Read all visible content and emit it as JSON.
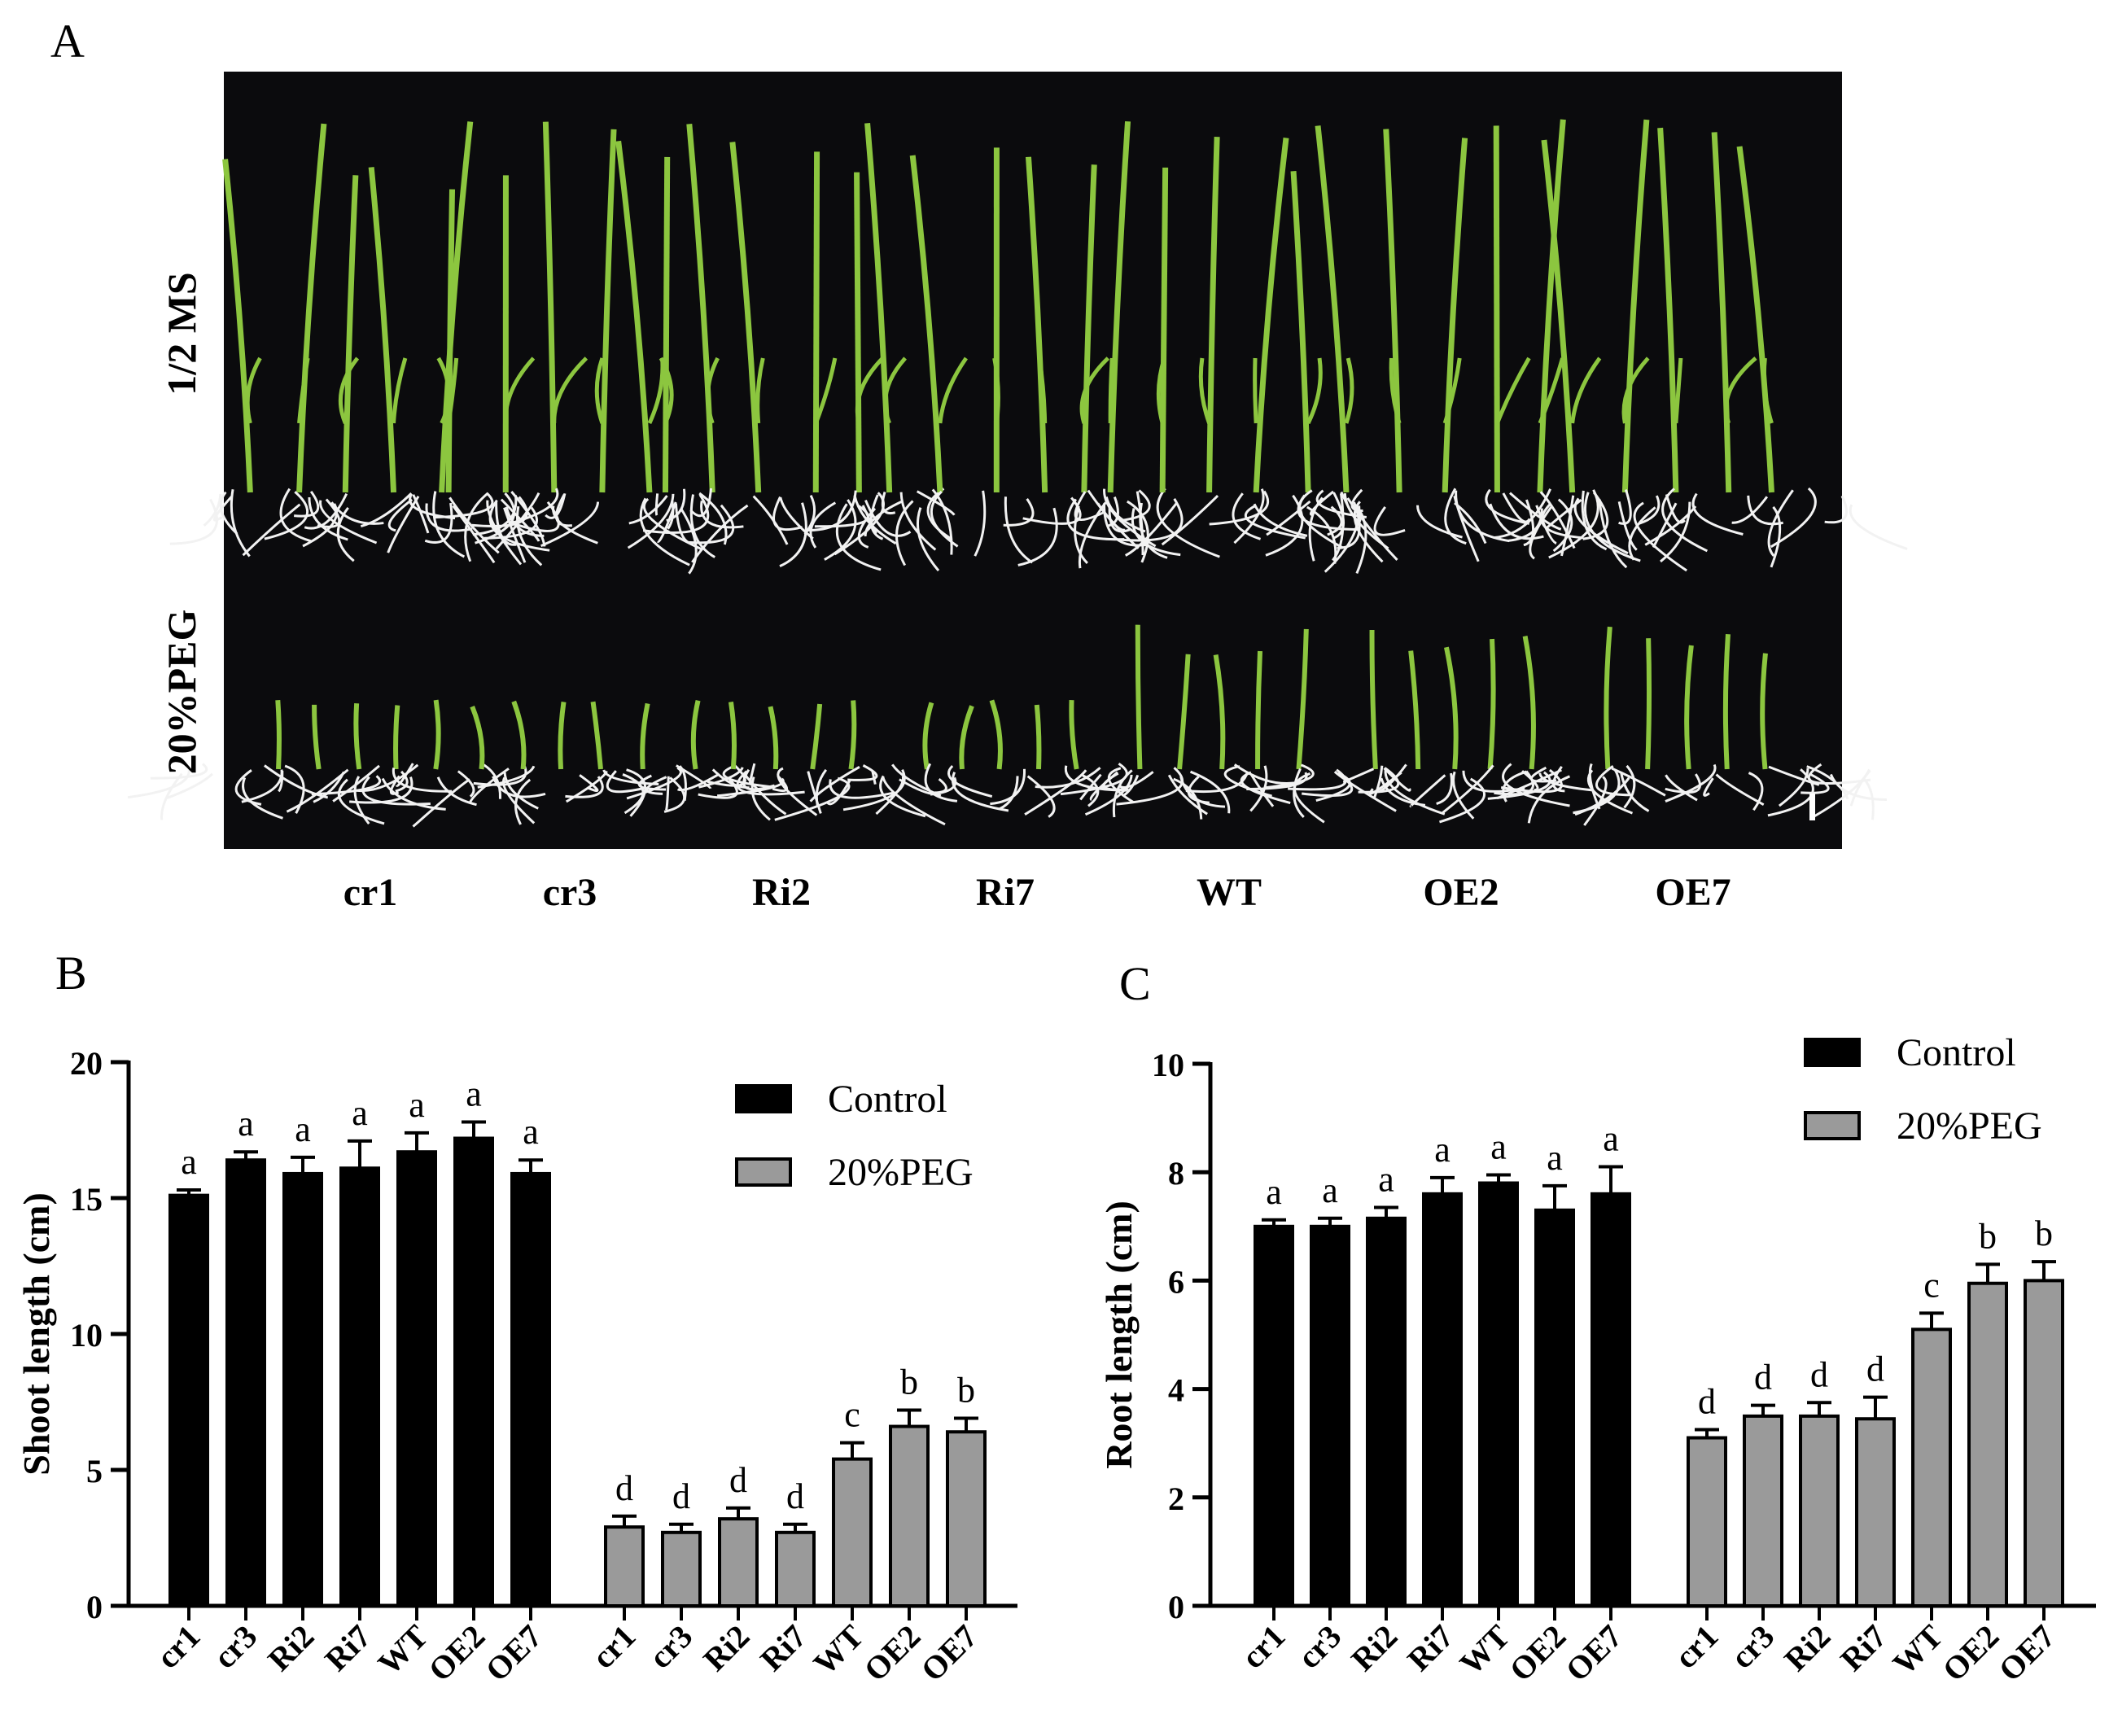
{
  "panels": {
    "a": "A",
    "b": "B",
    "c": "C"
  },
  "photo": {
    "row_labels": [
      "1/2  MS",
      "20%PEG"
    ],
    "genotypes": [
      "cr1",
      "cr3",
      "Ri2",
      "Ri7",
      "WT",
      "OE2",
      "OE7"
    ]
  },
  "colors": {
    "photo_background": "#0b0b0d",
    "leaf": "#8cc63f",
    "root": "#f2f2f2",
    "control_bar": "#000000",
    "peg_bar": "#9a9a9a"
  },
  "chart_data": [
    {
      "type": "bar",
      "panel": "B",
      "title": "",
      "xlabel": "",
      "ylabel": "Shoot length (cm)",
      "ylim": [
        0,
        20
      ],
      "yticks": [
        0,
        5,
        10,
        15,
        20
      ],
      "grid": false,
      "legend_position": "top-right",
      "groups": [
        {
          "name": "Control",
          "categories": [
            "cr1",
            "cr3",
            "Ri2",
            "Ri7",
            "WT",
            "OE2",
            "OE7"
          ],
          "values": [
            15.1,
            16.4,
            15.9,
            16.1,
            16.7,
            17.2,
            15.9
          ],
          "errors": [
            0.2,
            0.3,
            0.6,
            1.0,
            0.7,
            0.6,
            0.5
          ],
          "letters": [
            "a",
            "a",
            "a",
            "a",
            "a",
            "a",
            "a"
          ]
        },
        {
          "name": "20%PEG",
          "categories": [
            "cr1",
            "cr3",
            "Ri2",
            "Ri7",
            "WT",
            "OE2",
            "OE7"
          ],
          "values": [
            2.9,
            2.7,
            3.2,
            2.7,
            5.4,
            6.6,
            6.4
          ],
          "errors": [
            0.4,
            0.3,
            0.4,
            0.3,
            0.6,
            0.6,
            0.5
          ],
          "letters": [
            "d",
            "d",
            "d",
            "d",
            "c",
            "b",
            "b"
          ]
        }
      ]
    },
    {
      "type": "bar",
      "panel": "C",
      "title": "",
      "xlabel": "",
      "ylabel": "Root length (cm)",
      "ylim": [
        0,
        10
      ],
      "yticks": [
        0,
        2,
        4,
        6,
        8,
        10
      ],
      "grid": false,
      "legend_position": "top-right",
      "groups": [
        {
          "name": "Control",
          "categories": [
            "cr1",
            "cr3",
            "Ri2",
            "Ri7",
            "WT",
            "OE2",
            "OE7"
          ],
          "values": [
            7.0,
            7.0,
            7.15,
            7.6,
            7.8,
            7.3,
            7.6
          ],
          "errors": [
            0.12,
            0.15,
            0.2,
            0.3,
            0.15,
            0.45,
            0.5
          ],
          "letters": [
            "a",
            "a",
            "a",
            "a",
            "a",
            "a",
            "a"
          ]
        },
        {
          "name": "20%PEG",
          "categories": [
            "cr1",
            "cr3",
            "Ri2",
            "Ri7",
            "WT",
            "OE2",
            "OE7"
          ],
          "values": [
            3.1,
            3.5,
            3.5,
            3.45,
            5.1,
            5.95,
            6.0
          ],
          "errors": [
            0.15,
            0.2,
            0.25,
            0.4,
            0.3,
            0.35,
            0.35
          ],
          "letters": [
            "d",
            "d",
            "d",
            "d",
            "c",
            "b",
            "b"
          ]
        }
      ]
    }
  ]
}
